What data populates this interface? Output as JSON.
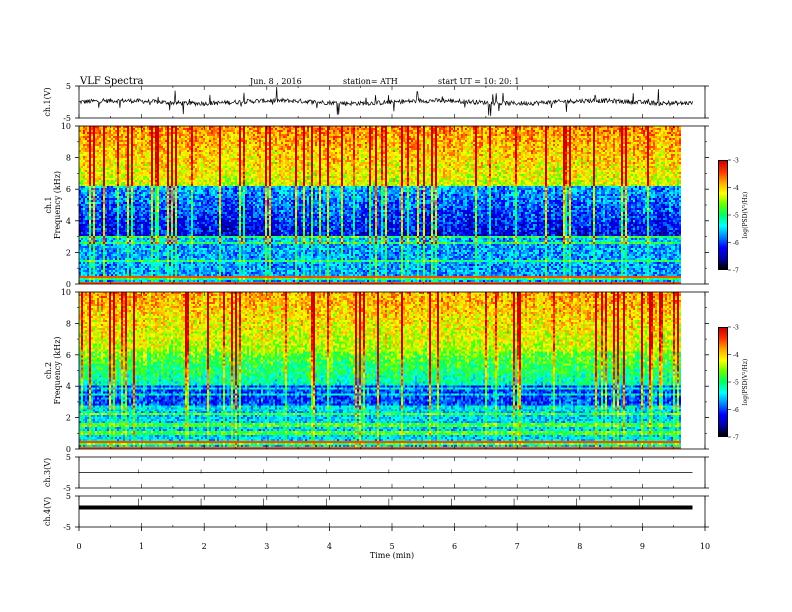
{
  "header": {
    "title": "VLF  Spectra",
    "date": "Jun. 8 , 2016",
    "station": "station= ATH",
    "start": "start  UT =   10: 20: 1"
  },
  "colors": {
    "colormap": [
      "#000000",
      "#0000aa",
      "#0000ff",
      "#0088ff",
      "#00ffff",
      "#00ff66",
      "#66ff00",
      "#ffff00",
      "#ffaa00",
      "#ff3300",
      "#cc0000",
      "#ffffff"
    ]
  },
  "chart_data": [
    {
      "type": "line",
      "panel": "ch1-waveform",
      "ylabel": "ch.1(V)",
      "ylim": [
        -5,
        5
      ],
      "y_ticks": [
        "5",
        "-5"
      ],
      "baseline_volts": 0
    },
    {
      "type": "heatmap",
      "panel": "ch1-spectrogram",
      "ylabel_channel": "ch.1",
      "ylabel": "Frequency  (kHz)",
      "ylim": [
        0,
        10
      ],
      "y_ticks": [
        "0",
        "2",
        "4",
        "6",
        "8",
        "10"
      ],
      "colorbar": {
        "label": "log(PSD(V²/Hz)",
        "range": [
          -7,
          -3
        ],
        "ticks": [
          "-3",
          "-4",
          "-5",
          "-6",
          "-7"
        ]
      }
    },
    {
      "type": "heatmap",
      "panel": "ch2-spectrogram",
      "ylabel_channel": "ch.2",
      "ylabel": "Frequency  (kHz)",
      "ylim": [
        0,
        10
      ],
      "y_ticks": [
        "0",
        "2",
        "4",
        "6",
        "8",
        "10"
      ],
      "colorbar": {
        "label": "log(PSD(V²/Hz)",
        "range": [
          -7,
          -3
        ],
        "ticks": [
          "-3",
          "-4",
          "-5",
          "-6",
          "-7"
        ]
      }
    },
    {
      "type": "line",
      "panel": "ch3-waveform",
      "ylabel": "ch.3(V)",
      "ylim": [
        -5,
        5
      ],
      "y_ticks": [
        "5",
        "-5"
      ],
      "baseline_volts": 0
    },
    {
      "type": "line",
      "panel": "ch4-waveform",
      "ylabel": "ch.4(V)",
      "ylim": [
        -5,
        5
      ],
      "y_ticks": [
        "5",
        "-5"
      ],
      "baseline_volts": 0
    }
  ],
  "x_axis": {
    "label": "Time  (min)",
    "xlim": [
      0,
      10
    ],
    "ticks": [
      "0",
      "1",
      "2",
      "3",
      "4",
      "5",
      "6",
      "7",
      "8",
      "9",
      "10"
    ],
    "data_end_min": 9.8
  }
}
